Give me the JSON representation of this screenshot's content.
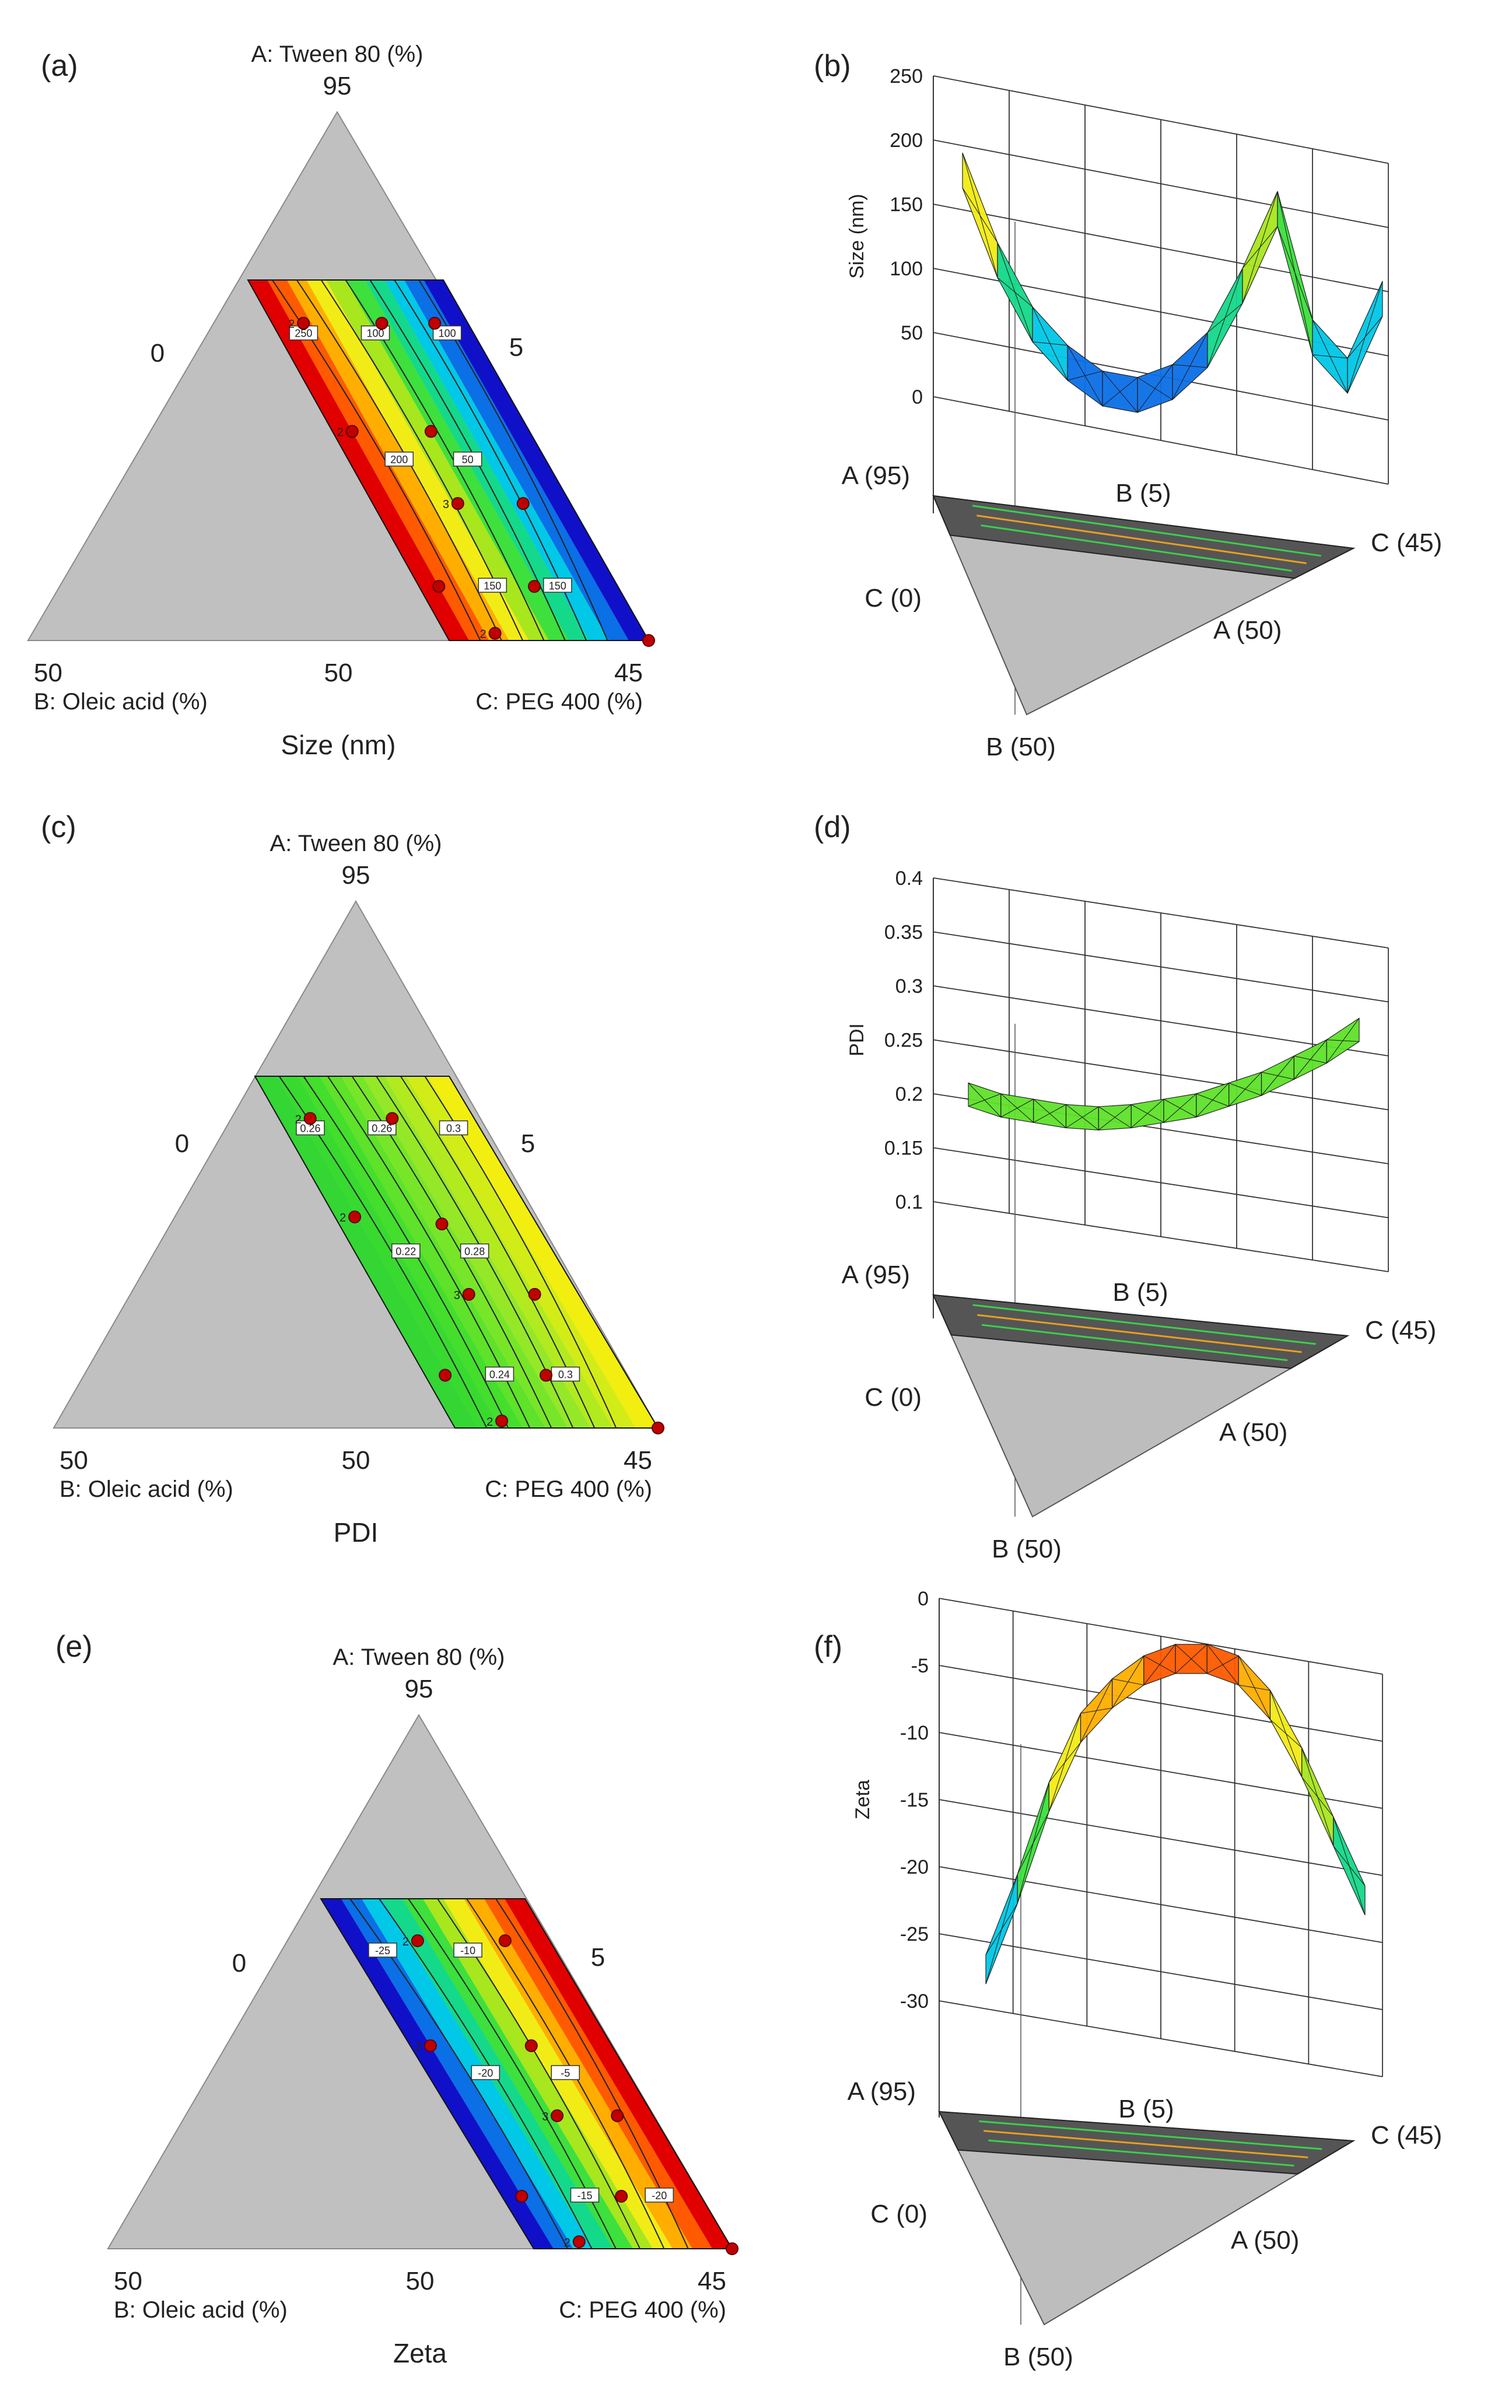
{
  "chart_data": [
    {
      "id": "a",
      "type": "ternary-contour",
      "panel_label": "(a)",
      "response": "Size (nm)",
      "vertex_labels": {
        "A": "A: Tween 80 (%)",
        "B": "B: Oleic acid (%)",
        "C": "C: PEG 400 (%)"
      },
      "tick_labels": {
        "top": "95",
        "left_corner": "50",
        "bottom_mid": "50",
        "right_corner": "45",
        "left_side": "0",
        "right_side": "5"
      },
      "contours": [
        {
          "label": "250",
          "value": 250
        },
        {
          "label": "200",
          "value": 200
        },
        {
          "label": "150",
          "value": 150
        },
        {
          "label": "100",
          "value": 100
        },
        {
          "label": "50",
          "value": 50
        },
        {
          "label": "150",
          "value": 150
        },
        {
          "label": "100",
          "value": 100
        }
      ],
      "design_points": [
        {
          "b": 0.12,
          "c": 0.16,
          "rep": "2"
        },
        {
          "b": 0.12,
          "c": 0.56
        },
        {
          "b": 0.12,
          "c": 0.83
        },
        {
          "b": 0.42,
          "c": 0.1,
          "rep": "2"
        },
        {
          "b": 0.42,
          "c": 0.5
        },
        {
          "b": 0.62,
          "c": 0.43,
          "rep": "3"
        },
        {
          "b": 0.62,
          "c": 0.76
        },
        {
          "b": 0.85,
          "c": 0.1
        },
        {
          "b": 0.85,
          "c": 0.58
        },
        {
          "b": 0.98,
          "c": 0.25,
          "rep": "2"
        },
        {
          "b": 1.0,
          "c": 1.0
        }
      ]
    },
    {
      "id": "b",
      "type": "surface-3d",
      "panel_label": "(b)",
      "zlabel": "Size (nm)",
      "zlim": [
        0,
        250
      ],
      "zticks": [
        "250",
        "200",
        "150",
        "100",
        "50",
        "0"
      ],
      "base_labels": {
        "a_top": "A (95)",
        "b_top": "B (5)",
        "c_right": "C (45)",
        "c_left": "C (0)",
        "a_bottom": "A (50)",
        "b_bottom": "B (50)"
      },
      "surface_profile": [
        190,
        120,
        70,
        40,
        20,
        15,
        25,
        50,
        100,
        160,
        60,
        30,
        90
      ]
    },
    {
      "id": "c",
      "type": "ternary-contour",
      "panel_label": "(c)",
      "response": "PDI",
      "vertex_labels": {
        "A": "A: Tween 80 (%)",
        "B": "B: Oleic acid (%)",
        "C": "C: PEG 400 (%)"
      },
      "tick_labels": {
        "top": "95",
        "left_corner": "50",
        "bottom_mid": "50",
        "right_corner": "45",
        "left_side": "0",
        "right_side": "5"
      },
      "contours": [
        {
          "label": "0.26",
          "value": 0.26
        },
        {
          "label": "0.22",
          "value": 0.22
        },
        {
          "label": "0.24",
          "value": 0.24
        },
        {
          "label": "0.26",
          "value": 0.26
        },
        {
          "label": "0.28",
          "value": 0.28
        },
        {
          "label": "0.3",
          "value": 0.3
        },
        {
          "label": "0.3",
          "value": 0.3
        }
      ],
      "design_points": [
        {
          "b": 0.12,
          "c": 0.16,
          "rep": "2"
        },
        {
          "b": 0.12,
          "c": 0.58
        },
        {
          "b": 0.4,
          "c": 0.1,
          "rep": "2"
        },
        {
          "b": 0.42,
          "c": 0.52
        },
        {
          "b": 0.62,
          "c": 0.45,
          "rep": "3"
        },
        {
          "b": 0.62,
          "c": 0.78
        },
        {
          "b": 0.85,
          "c": 0.1
        },
        {
          "b": 0.85,
          "c": 0.6
        },
        {
          "b": 0.98,
          "c": 0.25,
          "rep": "2"
        },
        {
          "b": 1.0,
          "c": 1.0
        }
      ]
    },
    {
      "id": "d",
      "type": "surface-3d",
      "panel_label": "(d)",
      "zlabel": "PDI",
      "zlim": [
        0.1,
        0.4
      ],
      "zticks": [
        "0.4",
        "0.35",
        "0.3",
        "0.25",
        "0.2",
        "0.15",
        "0.1"
      ],
      "base_labels": {
        "a_top": "A (95)",
        "b_top": "B (5)",
        "c_right": "C (45)",
        "c_left": "C (0)",
        "a_bottom": "A (50)",
        "b_bottom": "B (50)"
      },
      "surface_profile": [
        0.21,
        0.2,
        0.195,
        0.19,
        0.188,
        0.19,
        0.195,
        0.2,
        0.21,
        0.22,
        0.235,
        0.25,
        0.27
      ]
    },
    {
      "id": "e",
      "type": "ternary-contour",
      "panel_label": "(e)",
      "response": "Zeta",
      "vertex_labels": {
        "A": "A: Tween 80 (%)",
        "B": "B: Oleic acid (%)",
        "C": "C: PEG 400 (%)"
      },
      "tick_labels": {
        "top": "95",
        "left_corner": "50",
        "bottom_mid": "50",
        "right_corner": "45",
        "left_side": "0",
        "right_side": "5"
      },
      "contours": [
        {
          "label": "-25",
          "value": -25
        },
        {
          "label": "-20",
          "value": -20
        },
        {
          "label": "-15",
          "value": -15
        },
        {
          "label": "-10",
          "value": -10
        },
        {
          "label": "-5",
          "value": -5
        },
        {
          "label": "-20",
          "value": -20
        }
      ],
      "design_points": [
        {
          "b": 0.12,
          "c": 0.35,
          "rep": "2"
        },
        {
          "b": 0.12,
          "c": 0.78
        },
        {
          "b": 0.42,
          "c": 0.1,
          "rep": "2"
        },
        {
          "b": 0.42,
          "c": 0.6
        },
        {
          "b": 0.62,
          "c": 0.52,
          "rep": "3"
        },
        {
          "b": 0.62,
          "c": 0.82
        },
        {
          "b": 0.85,
          "c": 0.1
        },
        {
          "b": 0.85,
          "c": 0.6
        },
        {
          "b": 0.98,
          "c": 0.25,
          "rep": "2"
        },
        {
          "b": 1.0,
          "c": 1.0
        }
      ]
    },
    {
      "id": "f",
      "type": "surface-3d",
      "panel_label": "(f)",
      "zlabel": "Zeta",
      "zlim": [
        -35,
        0
      ],
      "zticks": [
        "0",
        "-5",
        "-10",
        "-15",
        "-20",
        "-25",
        "-30"
      ],
      "base_labels": {
        "a_top": "A (95)",
        "b_top": "B (5)",
        "c_right": "C (45)",
        "c_left": "C (0)",
        "a_bottom": "A (50)",
        "b_bottom": "B (50)"
      },
      "surface_profile": [
        -31,
        -24,
        -16,
        -10,
        -7,
        -5,
        -4,
        -4,
        -5,
        -8,
        -13,
        -19,
        -25
      ]
    }
  ]
}
